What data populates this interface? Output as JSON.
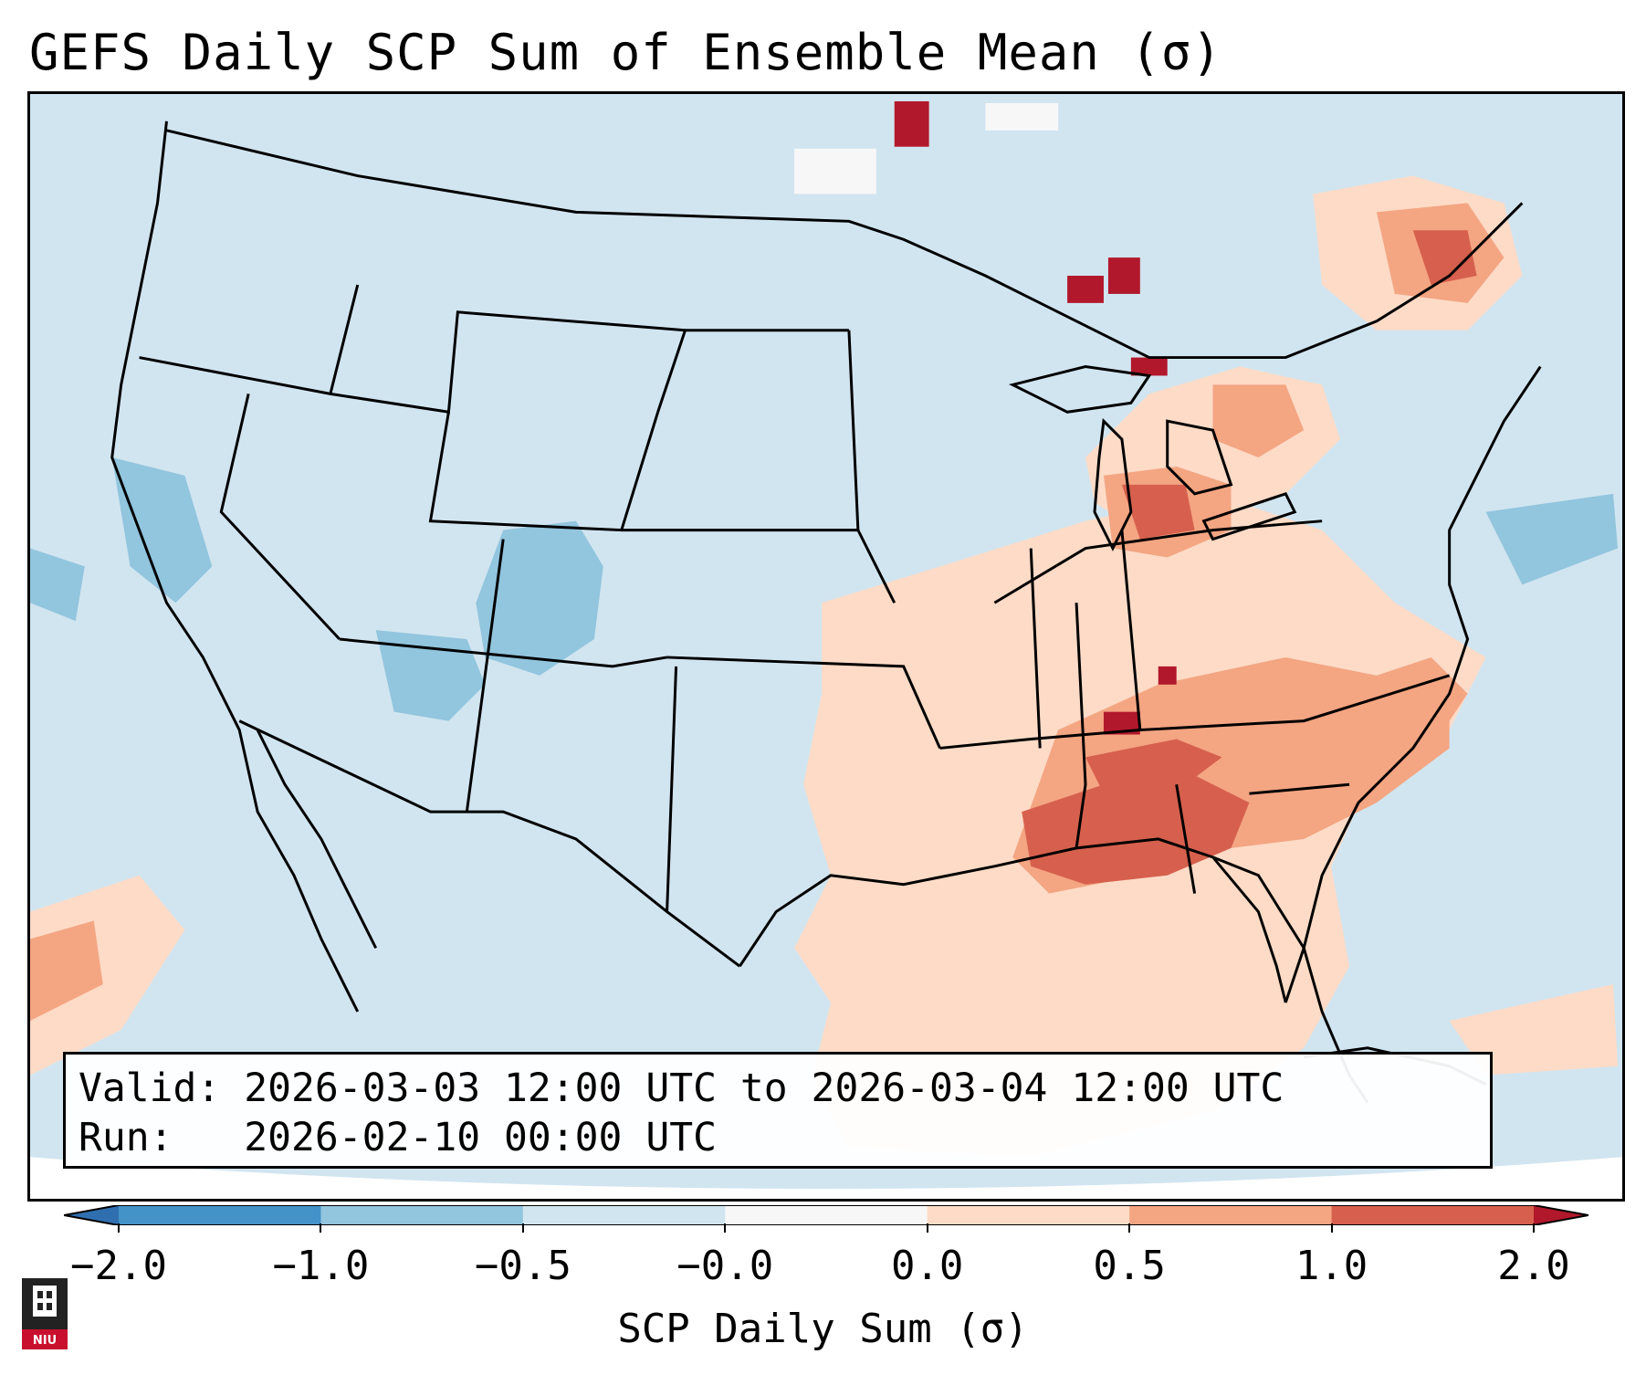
{
  "title": "GEFS Daily SCP Sum of Ensemble Mean (σ)",
  "info": {
    "valid_label": "Valid:",
    "valid_value": "2026-03-03 12:00 UTC to 2026-03-04 12:00 UTC",
    "run_label": "Run:",
    "run_value": "2026-02-10 00:00 UTC"
  },
  "colorbar": {
    "label": "SCP Daily Sum (σ)",
    "ticks": [
      "−2.0",
      "−1.0",
      "−0.5",
      "−0.0",
      "0.0",
      "0.5",
      "1.0",
      "2.0"
    ],
    "bins": [
      {
        "range": "< -2.0",
        "color": "#2f6fb0"
      },
      {
        "range": "-2.0 to -1.0",
        "color": "#4392c8"
      },
      {
        "range": "-1.0 to -0.5",
        "color": "#92c5de"
      },
      {
        "range": "-0.5 to -0.0",
        "color": "#d1e5f0"
      },
      {
        "range": "-0.0 to 0.0",
        "color": "#f7f7f7"
      },
      {
        "range": "0.0 to 0.5",
        "color": "#fddbc7"
      },
      {
        "range": "0.5 to 1.0",
        "color": "#f4a582"
      },
      {
        "range": "1.0 to 2.0",
        "color": "#d6604d"
      },
      {
        "range": "> 2.0",
        "color": "#b2182b"
      }
    ]
  },
  "logo": {
    "text": "NIU",
    "color": "#c8102e"
  },
  "map": {
    "background_color": "#d1e5f0",
    "line_color": "#000000"
  }
}
